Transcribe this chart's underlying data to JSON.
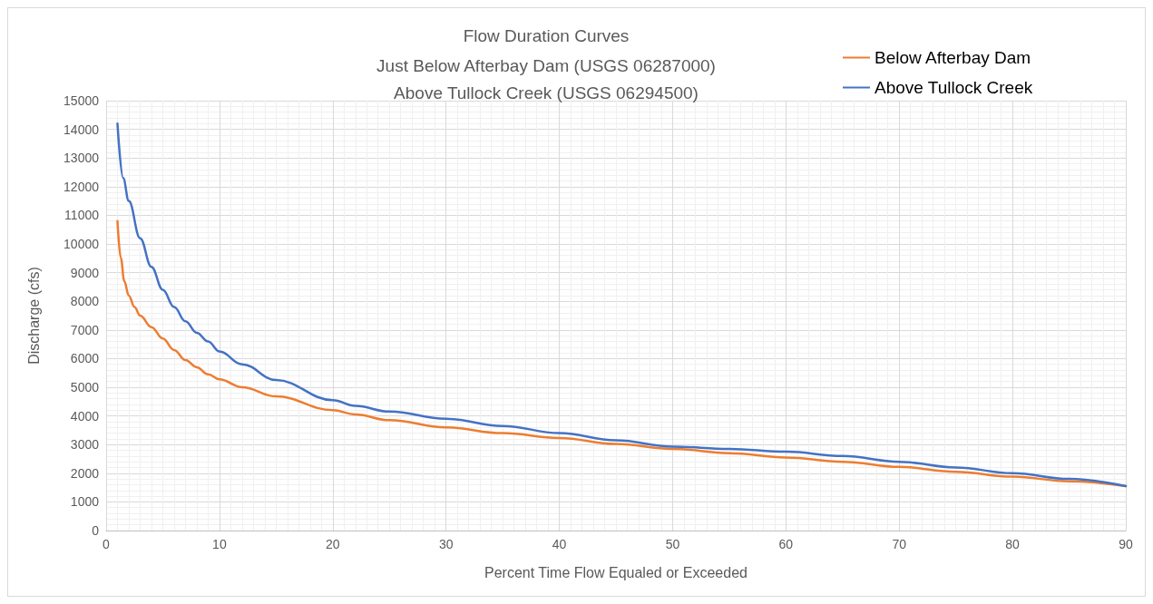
{
  "chart_data": {
    "type": "line",
    "title": "Flow Duration Curves",
    "subtitle": "Just Below Afterbay Dam (USGS 06287000)\nAbove Tullock Creek (USGS 06294500)",
    "xlabel": "Percent Time Flow Equaled or Exceeded",
    "ylabel": "Discharge (cfs)",
    "xlim": [
      0,
      90
    ],
    "xticks": [
      0,
      10,
      20,
      30,
      40,
      50,
      60,
      70,
      80,
      90
    ],
    "ylim": [
      0,
      15000
    ],
    "yticks": [
      0,
      1000,
      2000,
      3000,
      4000,
      5000,
      6000,
      7000,
      8000,
      9000,
      10000,
      11000,
      12000,
      13000,
      14000,
      15000
    ],
    "grid": true,
    "legend": "top right",
    "marker": "none",
    "line_style": "solid",
    "series": [
      {
        "name": "Below Afterbay Dam",
        "color": "#ed7d31",
        "x": [
          1,
          1.3,
          1.6,
          2,
          2.5,
          3,
          4,
          5,
          6,
          7,
          8,
          9,
          10,
          12,
          15,
          20,
          22,
          25,
          30,
          35,
          40,
          45,
          50,
          55,
          60,
          65,
          70,
          75,
          80,
          85,
          90
        ],
        "values": [
          10800,
          9500,
          8700,
          8200,
          7800,
          7500,
          7100,
          6700,
          6300,
          5950,
          5700,
          5450,
          5280,
          5000,
          4680,
          4200,
          4050,
          3850,
          3600,
          3400,
          3230,
          3020,
          2850,
          2700,
          2550,
          2400,
          2220,
          2050,
          1880,
          1720,
          1550
        ]
      },
      {
        "name": "Above Tullock Creek",
        "color": "#4472c4",
        "x": [
          1,
          1.5,
          2,
          3,
          4,
          5,
          6,
          7,
          8,
          9,
          10,
          12,
          15,
          20,
          22,
          25,
          30,
          35,
          40,
          45,
          50,
          55,
          60,
          65,
          70,
          75,
          80,
          85,
          90
        ],
        "values": [
          14200,
          12300,
          11500,
          10200,
          9200,
          8400,
          7800,
          7300,
          6900,
          6600,
          6250,
          5800,
          5250,
          4550,
          4350,
          4150,
          3900,
          3650,
          3400,
          3150,
          2930,
          2850,
          2750,
          2600,
          2400,
          2200,
          2000,
          1800,
          1550
        ]
      }
    ]
  }
}
